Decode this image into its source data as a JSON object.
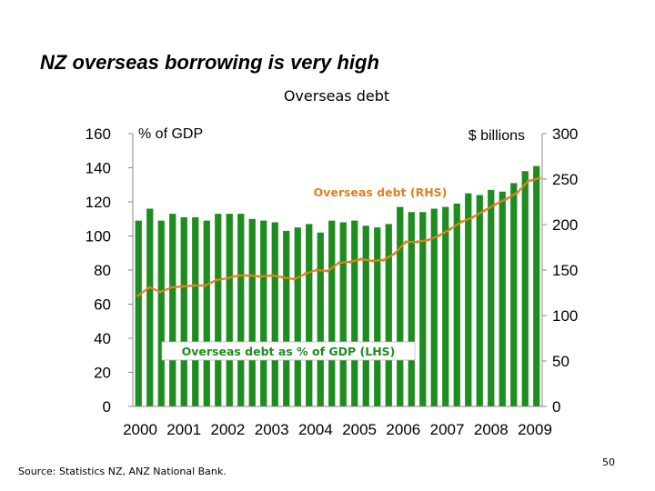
{
  "slide": {
    "title": "NZ overseas borrowing is very high",
    "source": "Source:   Statistics NZ, ANZ National Bank.",
    "page_number": "50"
  },
  "chart_data": {
    "type": "bar+line",
    "title": "Overseas debt",
    "left_axis": {
      "unit_label": "% of GDP",
      "ylim": [
        0,
        160
      ],
      "ticks": [
        "0",
        "20",
        "40",
        "60",
        "80",
        "100",
        "120",
        "140",
        "160"
      ]
    },
    "right_axis": {
      "unit_label": "$ billions",
      "ylim": [
        0,
        300
      ],
      "ticks": [
        "0",
        "50",
        "100",
        "150",
        "200",
        "250",
        "300"
      ]
    },
    "x_ticks": [
      "2000",
      "2001",
      "2002",
      "2003",
      "2004",
      "2005",
      "2006",
      "2007",
      "2008",
      "2009"
    ],
    "series": [
      {
        "name": "Overseas debt as % of GDP (LHS)",
        "type": "bar",
        "axis": "left",
        "color": "#1e8c1e",
        "values": [
          109,
          116,
          109,
          113,
          111,
          111,
          109,
          113,
          113,
          113,
          110,
          109,
          108,
          103,
          105,
          107,
          102,
          109,
          108,
          109,
          106,
          105,
          107,
          117,
          114,
          114,
          116,
          117,
          119,
          125,
          124,
          127,
          126,
          131,
          138,
          141
        ]
      },
      {
        "name": "Overseas debt (RHS)",
        "type": "line",
        "axis": "right",
        "color": "#e08020",
        "values": [
          122,
          131,
          126,
          131,
          132,
          133,
          133,
          139,
          141,
          144,
          144,
          143,
          144,
          142,
          140,
          146,
          150,
          149,
          158,
          159,
          162,
          160,
          161,
          168,
          181,
          181,
          183,
          188,
          195,
          203,
          208,
          215,
          222,
          228,
          235,
          248,
          251
        ]
      }
    ]
  }
}
